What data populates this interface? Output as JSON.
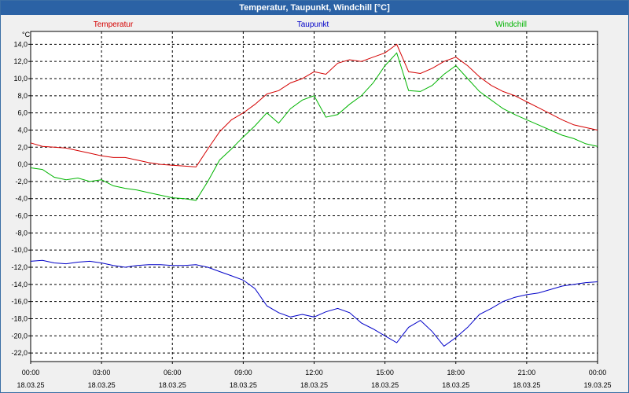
{
  "window": {
    "title": "Temperatur, Taupunkt, Windchill [°C]"
  },
  "colors": {
    "temperatur": "#d40000",
    "taupunkt": "#0000c8",
    "windchill": "#00b400",
    "grid": "#000000",
    "title_bg": "#2b62a5"
  },
  "chart_data": {
    "type": "line",
    "ylabel": "°C",
    "ylim": [
      -23,
      15.5
    ],
    "yticks": [
      14,
      12,
      10,
      8,
      6,
      4,
      2,
      0,
      -2,
      -4,
      -6,
      -8,
      -10,
      -12,
      -14,
      -16,
      -18,
      -20,
      -22
    ],
    "ytick_labels": [
      "14,0",
      "12,0",
      "10,0",
      "8,0",
      "6,0",
      "4,0",
      "2,0",
      "0,0",
      "-2,0",
      "-4,0",
      "-6,0",
      "-8,0",
      "-10,0",
      "-12,0",
      "-14,0",
      "-16,0",
      "-18,0",
      "-20,0",
      "-22,0"
    ],
    "xlim": [
      0,
      24
    ],
    "xticks": [
      {
        "time": "00:00",
        "date": "18.03.25"
      },
      {
        "time": "03:00",
        "date": "18.03.25"
      },
      {
        "time": "06:00",
        "date": "18.03.25"
      },
      {
        "time": "09:00",
        "date": "18.03.25"
      },
      {
        "time": "12:00",
        "date": "18.03.25"
      },
      {
        "time": "15:00",
        "date": "18.03.25"
      },
      {
        "time": "18:00",
        "date": "18.03.25"
      },
      {
        "time": "21:00",
        "date": "18.03.25"
      },
      {
        "time": "00:00",
        "date": "19.03.25"
      }
    ],
    "grid": true,
    "legend": "top",
    "series": [
      {
        "name": "Temperatur",
        "color": "#d40000",
        "x": [
          0,
          0.5,
          1,
          1.5,
          2,
          2.5,
          3,
          3.5,
          4,
          4.5,
          5,
          5.5,
          6,
          6.5,
          7,
          7.5,
          8,
          8.5,
          9,
          9.5,
          10,
          10.5,
          11,
          11.5,
          12,
          12.5,
          13,
          13.5,
          14,
          14.5,
          15,
          15.5,
          16,
          16.5,
          17,
          17.5,
          18,
          18.5,
          19,
          19.5,
          20,
          20.5,
          21,
          21.5,
          22,
          22.5,
          23,
          23.5,
          24
        ],
        "values": [
          2.5,
          2.1,
          2.0,
          1.9,
          1.6,
          1.3,
          1.0,
          0.8,
          0.8,
          0.5,
          0.2,
          0.0,
          -0.1,
          -0.2,
          -0.3,
          1.8,
          3.8,
          5.2,
          6.0,
          7.0,
          8.2,
          8.6,
          9.5,
          10.0,
          10.8,
          10.5,
          11.8,
          12.2,
          12.0,
          12.5,
          13.0,
          14.0,
          10.8,
          10.6,
          11.2,
          12.0,
          12.5,
          11.5,
          10.2,
          9.2,
          8.5,
          8.0,
          7.3,
          6.6,
          5.9,
          5.2,
          4.6,
          4.3,
          4.0
        ]
      },
      {
        "name": "Taupunkt",
        "color": "#0000c8",
        "x": [
          0,
          0.5,
          1,
          1.5,
          2,
          2.5,
          3,
          3.5,
          4,
          4.5,
          5,
          5.5,
          6,
          6.5,
          7,
          7.5,
          8,
          8.5,
          9,
          9.5,
          10,
          10.5,
          11,
          11.5,
          12,
          12.5,
          13,
          13.5,
          14,
          14.5,
          15,
          15.5,
          16,
          16.5,
          17,
          17.5,
          18,
          18.5,
          19,
          19.5,
          20,
          20.5,
          21,
          21.5,
          22,
          22.5,
          23,
          23.5,
          24
        ],
        "values": [
          -11.3,
          -11.2,
          -11.5,
          -11.6,
          -11.4,
          -11.3,
          -11.5,
          -11.8,
          -12.0,
          -11.8,
          -11.7,
          -11.7,
          -11.8,
          -11.8,
          -11.7,
          -12.0,
          -12.5,
          -13.0,
          -13.5,
          -14.5,
          -16.5,
          -17.3,
          -17.8,
          -17.5,
          -17.8,
          -17.2,
          -16.8,
          -17.3,
          -18.5,
          -19.2,
          -20.0,
          -20.8,
          -19.0,
          -18.2,
          -19.5,
          -21.2,
          -20.2,
          -19.0,
          -17.5,
          -16.8,
          -16.0,
          -15.5,
          -15.2,
          -15.0,
          -14.6,
          -14.2,
          -14.0,
          -13.8,
          -13.7
        ]
      },
      {
        "name": "Windchill",
        "color": "#00b400",
        "x": [
          0,
          0.5,
          1,
          1.5,
          2,
          2.5,
          3,
          3.5,
          4,
          4.5,
          5,
          5.5,
          6,
          6.5,
          7,
          7.5,
          8,
          8.5,
          9,
          9.5,
          10,
          10.5,
          11,
          11.5,
          12,
          12.5,
          13,
          13.5,
          14,
          14.5,
          15,
          15.5,
          16,
          16.5,
          17,
          17.5,
          18,
          18.5,
          19,
          19.5,
          20,
          20.5,
          21,
          21.5,
          22,
          22.5,
          23,
          23.5,
          24
        ],
        "values": [
          -0.4,
          -0.6,
          -1.5,
          -1.8,
          -1.6,
          -2.0,
          -1.8,
          -2.5,
          -2.8,
          -3.0,
          -3.3,
          -3.6,
          -3.9,
          -4.0,
          -4.2,
          -2.0,
          0.5,
          1.8,
          3.2,
          4.5,
          6.0,
          4.8,
          6.5,
          7.5,
          8.0,
          5.5,
          5.8,
          7.0,
          8.0,
          9.5,
          11.5,
          13.0,
          8.6,
          8.5,
          9.2,
          10.5,
          11.5,
          10.0,
          8.5,
          7.5,
          6.5,
          5.8,
          5.2,
          4.6,
          4.0,
          3.4,
          3.0,
          2.4,
          2.1
        ]
      }
    ]
  }
}
